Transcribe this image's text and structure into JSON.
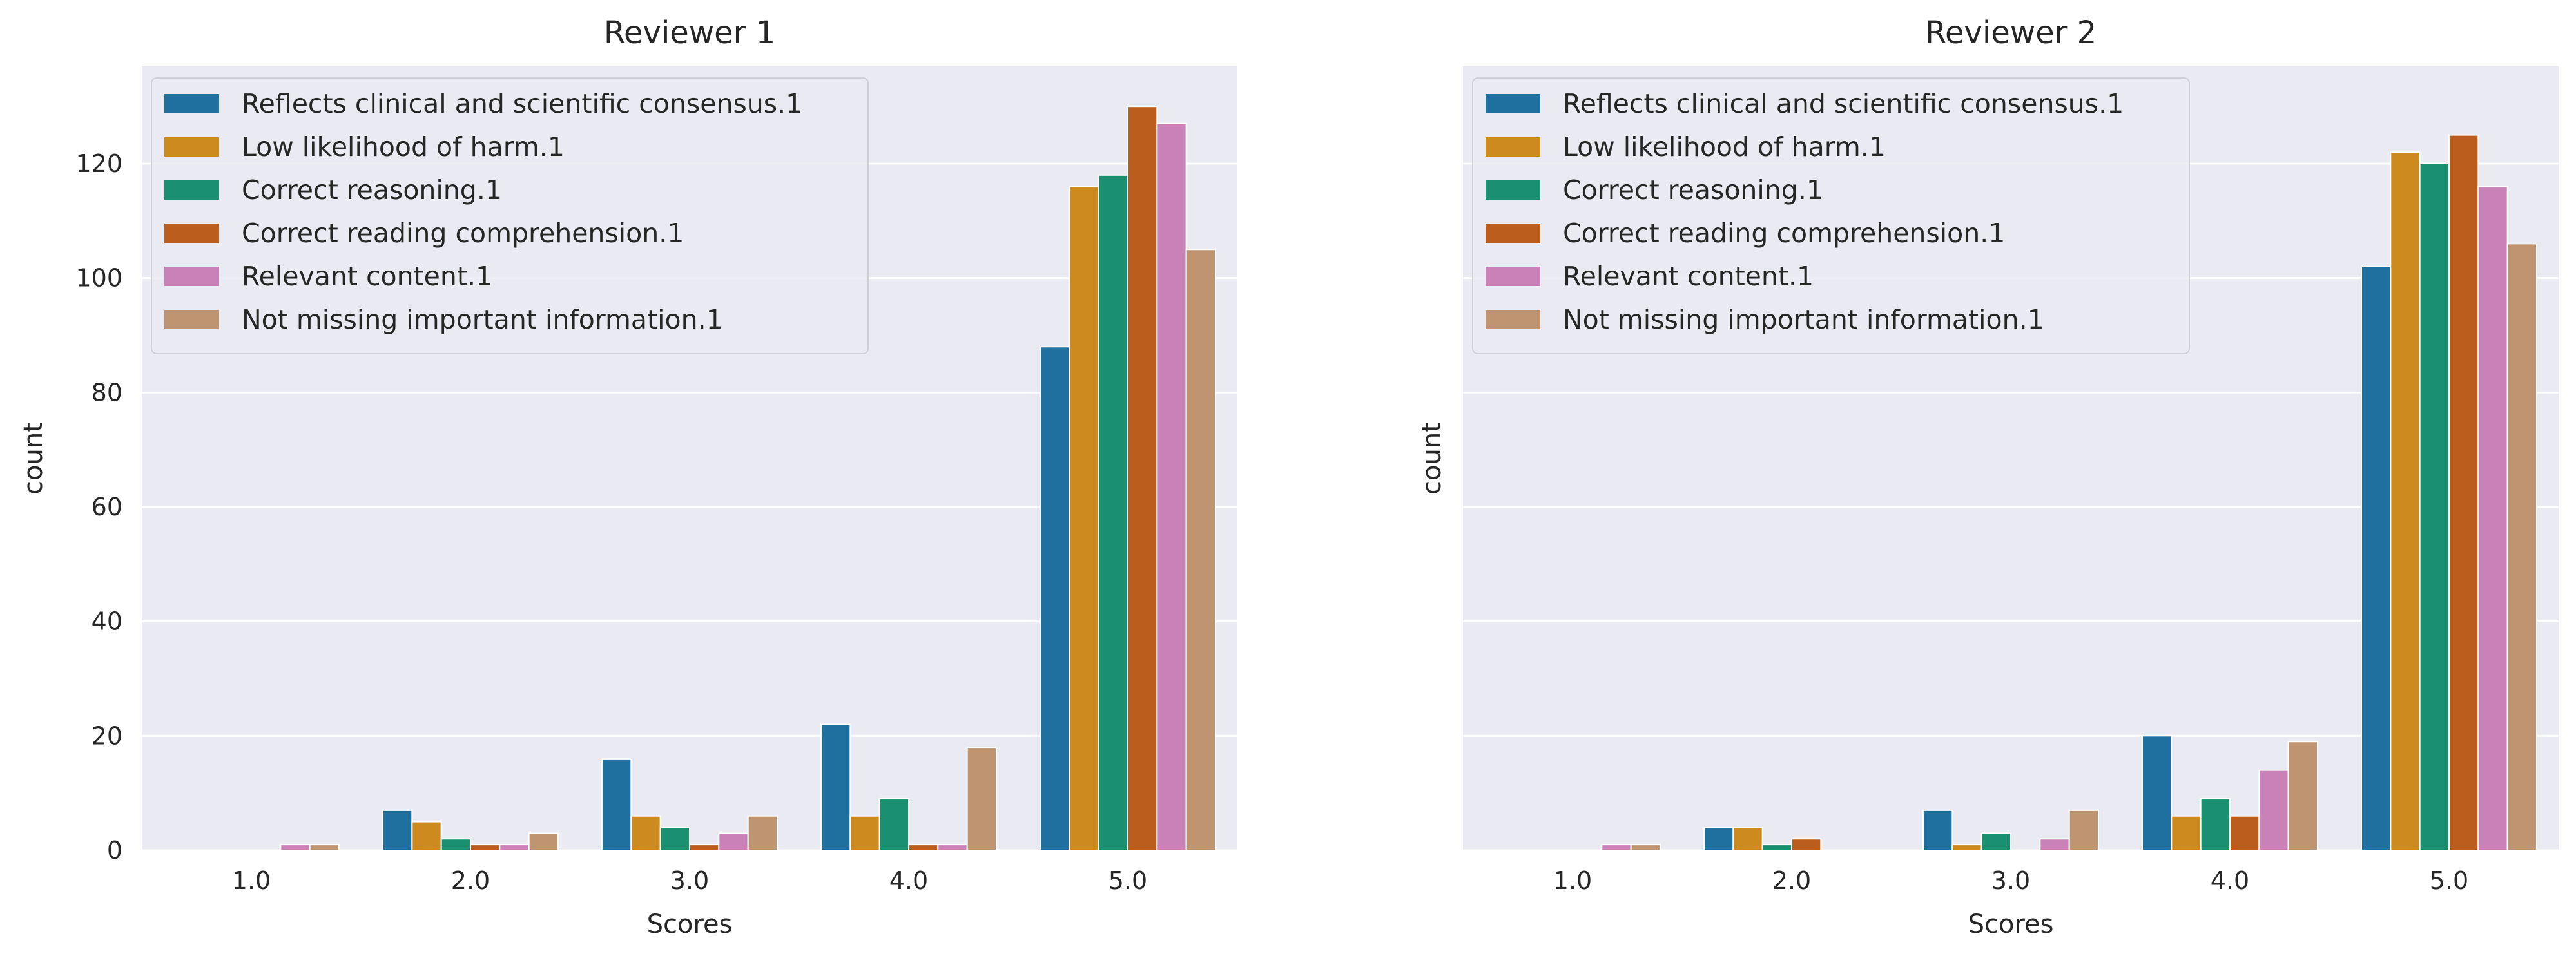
{
  "chart_data": [
    {
      "type": "bar",
      "title": "Reviewer 1",
      "xlabel": "Scores",
      "ylabel": "count",
      "categories": [
        "1.0",
        "2.0",
        "3.0",
        "4.0",
        "5.0"
      ],
      "ylim": [
        0,
        137
      ],
      "yticks": [
        "0",
        "20",
        "40",
        "60",
        "80",
        "100",
        "120"
      ],
      "grid": true,
      "legend_position": "top-left",
      "series": [
        {
          "name": "Reflects clinical and scientific consensus.1",
          "color": "#1f6f9f",
          "values": [
            0,
            7,
            16,
            22,
            88
          ]
        },
        {
          "name": "Low likelihood of harm.1",
          "color": "#cc8a1f",
          "values": [
            0,
            5,
            6,
            6,
            116
          ]
        },
        {
          "name": "Correct reasoning.1",
          "color": "#1a9070",
          "values": [
            0,
            2,
            4,
            9,
            118
          ]
        },
        {
          "name": "Correct reading comprehension.1",
          "color": "#bb5e1d",
          "values": [
            0,
            1,
            1,
            1,
            130
          ]
        },
        {
          "name": "Relevant content.1",
          "color": "#c982b8",
          "values": [
            1,
            1,
            3,
            1,
            127
          ]
        },
        {
          "name": "Not missing important information.1",
          "color": "#bf9470",
          "values": [
            1,
            3,
            6,
            18,
            105
          ]
        }
      ]
    },
    {
      "type": "bar",
      "title": "Reviewer 2",
      "xlabel": "Scores",
      "ylabel": "count",
      "categories": [
        "1.0",
        "2.0",
        "3.0",
        "4.0",
        "5.0"
      ],
      "ylim": [
        0,
        137
      ],
      "yticks": [],
      "grid": true,
      "legend_position": "top-left",
      "series": [
        {
          "name": "Reflects clinical and scientific consensus.1",
          "color": "#1f6f9f",
          "values": [
            0,
            4,
            7,
            20,
            102
          ]
        },
        {
          "name": "Low likelihood of harm.1",
          "color": "#cc8a1f",
          "values": [
            0,
            4,
            1,
            6,
            122
          ]
        },
        {
          "name": "Correct reasoning.1",
          "color": "#1a9070",
          "values": [
            0,
            1,
            3,
            9,
            120
          ]
        },
        {
          "name": "Correct reading comprehension.1",
          "color": "#bb5e1d",
          "values": [
            0,
            2,
            0,
            6,
            125
          ]
        },
        {
          "name": "Relevant content.1",
          "color": "#c982b8",
          "values": [
            1,
            0,
            2,
            14,
            116
          ]
        },
        {
          "name": "Not missing important information.1",
          "color": "#bf9470",
          "values": [
            1,
            0,
            7,
            19,
            106
          ]
        }
      ]
    }
  ]
}
